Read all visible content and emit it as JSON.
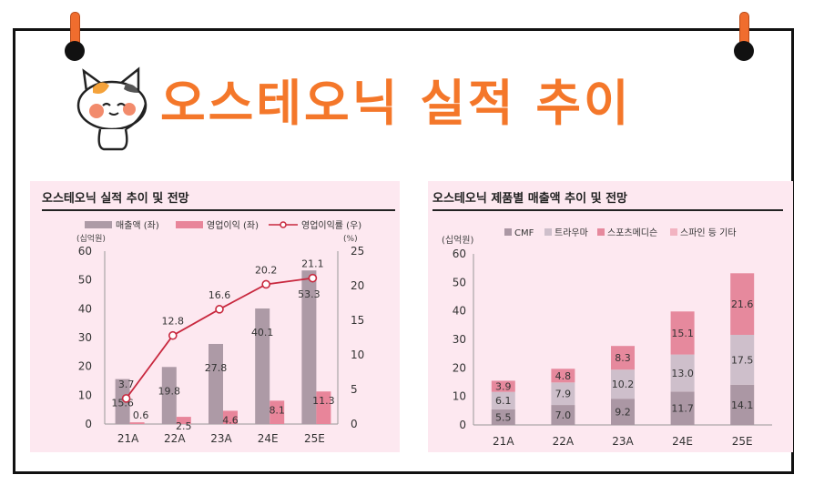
{
  "page": {
    "title": "오스테오닉 실적 추이",
    "mascot_icon": "cat-mascot-icon",
    "accent_color": "#f4772a"
  },
  "chart_data": [
    {
      "type": "bar",
      "title": "오스테오닉 실적 추이 및 전망",
      "categories": [
        "21A",
        "22A",
        "23A",
        "24E",
        "25E"
      ],
      "y_left_unit": "(십억원)",
      "y_right_unit": "(%)",
      "ylim_left": [
        0,
        60
      ],
      "yticks_left": [
        "0",
        "10",
        "20",
        "30",
        "40",
        "50",
        "60"
      ],
      "ylim_right": [
        0,
        25
      ],
      "yticks_right": [
        "0",
        "5",
        "10",
        "15",
        "20",
        "25"
      ],
      "legend_position": "top",
      "series": [
        {
          "name": "매출액 (좌)",
          "kind": "bar",
          "axis": "left",
          "color": "#ad9aa6",
          "values": [
            15.6,
            19.8,
            27.8,
            40.1,
            53.3
          ],
          "labels": [
            "15.6",
            "19.8",
            "27.8",
            "40.1",
            "53.3"
          ]
        },
        {
          "name": "영업이익 (좌)",
          "kind": "bar",
          "axis": "left",
          "color": "#e8859a",
          "values": [
            0.6,
            2.5,
            4.6,
            8.1,
            11.3
          ],
          "labels": [
            "0.6",
            "2.5",
            "4.6",
            "8.1",
            "11.3"
          ]
        },
        {
          "name": "영업이익률 (우)",
          "kind": "line",
          "axis": "right",
          "color": "#c8283e",
          "values": [
            3.7,
            12.8,
            16.6,
            20.2,
            21.1
          ],
          "labels": [
            "3.7",
            "12.8",
            "16.6",
            "20.2",
            "21.1"
          ]
        }
      ]
    },
    {
      "type": "bar",
      "stacked": true,
      "title": "오스테오닉 제품별 매출액 추이 및 전망",
      "categories": [
        "21A",
        "22A",
        "23A",
        "24E",
        "25E"
      ],
      "y_unit": "(십억원)",
      "ylim": [
        0,
        60
      ],
      "yticks": [
        "0",
        "10",
        "20",
        "30",
        "40",
        "50",
        "60"
      ],
      "legend_position": "top",
      "series": [
        {
          "name": "CMF",
          "color": "#ab97a4",
          "values": [
            5.5,
            7.0,
            9.2,
            11.7,
            14.1
          ],
          "labels": [
            "5.5",
            "7.0",
            "9.2",
            "11.7",
            "14.1"
          ]
        },
        {
          "name": "트라우마",
          "color": "#cebfcb",
          "values": [
            6.1,
            7.9,
            10.2,
            13.0,
            17.5
          ],
          "labels": [
            "6.1",
            "7.9",
            "10.2",
            "13.0",
            "17.5"
          ]
        },
        {
          "name": "스포츠메디슨",
          "color": "#e6899d",
          "values": [
            3.9,
            4.8,
            8.3,
            15.1,
            21.6
          ],
          "labels": [
            "3.9",
            "4.8",
            "8.3",
            "15.1",
            "21.6"
          ]
        },
        {
          "name": "스파인 등 기타",
          "color": "#f2b3c1",
          "values": [
            0,
            0,
            0,
            0,
            0
          ],
          "labels": []
        }
      ]
    }
  ]
}
